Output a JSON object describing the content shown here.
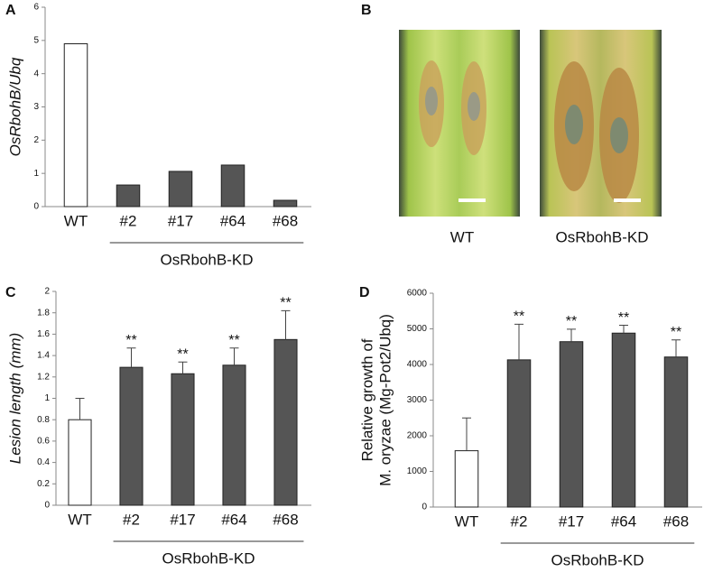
{
  "chart_data": [
    {
      "type": "bar",
      "panel": "A",
      "y_label": "OsRbohB/Ubq",
      "categories": [
        "WT",
        "#2",
        "#17",
        "#64",
        "#68"
      ],
      "values": [
        4.9,
        0.65,
        1.06,
        1.25,
        0.19
      ],
      "colors": [
        "#ffffff",
        "#555555",
        "#555555",
        "#555555",
        "#555555"
      ],
      "group_label": "OsRbohB-KD",
      "ylim": [
        0,
        6
      ],
      "yticks": [
        0,
        1,
        2,
        3,
        4,
        5,
        6
      ]
    },
    {
      "type": "bar",
      "panel": "C",
      "y_label": "Lesion length (mm)",
      "categories": [
        "WT",
        "#2",
        "#17",
        "#64",
        "#68"
      ],
      "values": [
        0.8,
        1.29,
        1.23,
        1.31,
        1.55
      ],
      "errors": [
        0.2,
        0.18,
        0.11,
        0.16,
        0.27
      ],
      "significance": [
        null,
        "**",
        "**",
        "**",
        "**"
      ],
      "colors": [
        "#ffffff",
        "#555555",
        "#555555",
        "#555555",
        "#555555"
      ],
      "group_label": "OsRbohB-KD",
      "ylim": [
        0,
        2
      ],
      "yticks": [
        0,
        0.2,
        0.4,
        0.6,
        0.8,
        1,
        1.2,
        1.4,
        1.6,
        1.8,
        2
      ]
    },
    {
      "type": "bar",
      "panel": "D",
      "y_label": [
        "Relative growth of",
        "M. oryzae (Mg-Pot2/Ubq)"
      ],
      "categories": [
        "WT",
        "#2",
        "#17",
        "#64",
        "#68"
      ],
      "values": [
        1580,
        4130,
        4640,
        4880,
        4210
      ],
      "errors": [
        920,
        1000,
        350,
        220,
        480
      ],
      "significance": [
        null,
        "**",
        "**",
        "**",
        "**"
      ],
      "colors": [
        "#ffffff",
        "#555555",
        "#555555",
        "#555555",
        "#555555"
      ],
      "group_label": "OsRbohB-KD",
      "ylim": [
        0,
        6000
      ],
      "yticks": [
        0,
        1000,
        2000,
        3000,
        4000,
        5000,
        6000
      ]
    }
  ],
  "panel_b": {
    "panel": "B",
    "images": [
      {
        "label": "WT"
      },
      {
        "label": "OsRbohB-KD"
      }
    ]
  }
}
